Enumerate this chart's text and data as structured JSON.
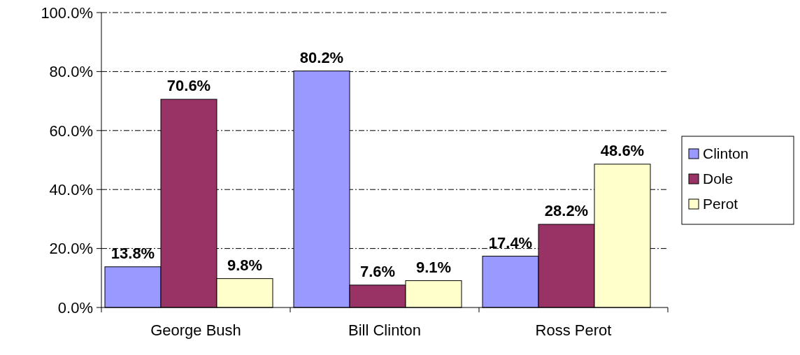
{
  "chart_data": {
    "type": "bar",
    "categories": [
      "George Bush",
      "Bill Clinton",
      "Ross Perot"
    ],
    "series": [
      {
        "name": "Clinton",
        "color": "#9999ff",
        "values": [
          13.8,
          80.2,
          17.4
        ],
        "value_labels": [
          "13.8%",
          "80.2%",
          "17.4%"
        ]
      },
      {
        "name": "Dole",
        "color": "#993366",
        "values": [
          70.6,
          7.6,
          28.2
        ],
        "value_labels": [
          "70.6%",
          "7.6%",
          "28.2%"
        ]
      },
      {
        "name": "Perot",
        "color": "#ffffcc",
        "values": [
          9.8,
          9.1,
          48.6
        ],
        "value_labels": [
          "9.8%",
          "9.1%",
          "48.6%"
        ]
      }
    ],
    "ylim": [
      0,
      100
    ],
    "yticks": [
      {
        "value": 0,
        "label": "0.0%"
      },
      {
        "value": 20,
        "label": "20.0%"
      },
      {
        "value": 40,
        "label": "40.0%"
      },
      {
        "value": 60,
        "label": "60.0%"
      },
      {
        "value": 80,
        "label": "80.0%"
      },
      {
        "value": 100,
        "label": "100.0%"
      }
    ],
    "grid": "y",
    "legend": "right"
  }
}
